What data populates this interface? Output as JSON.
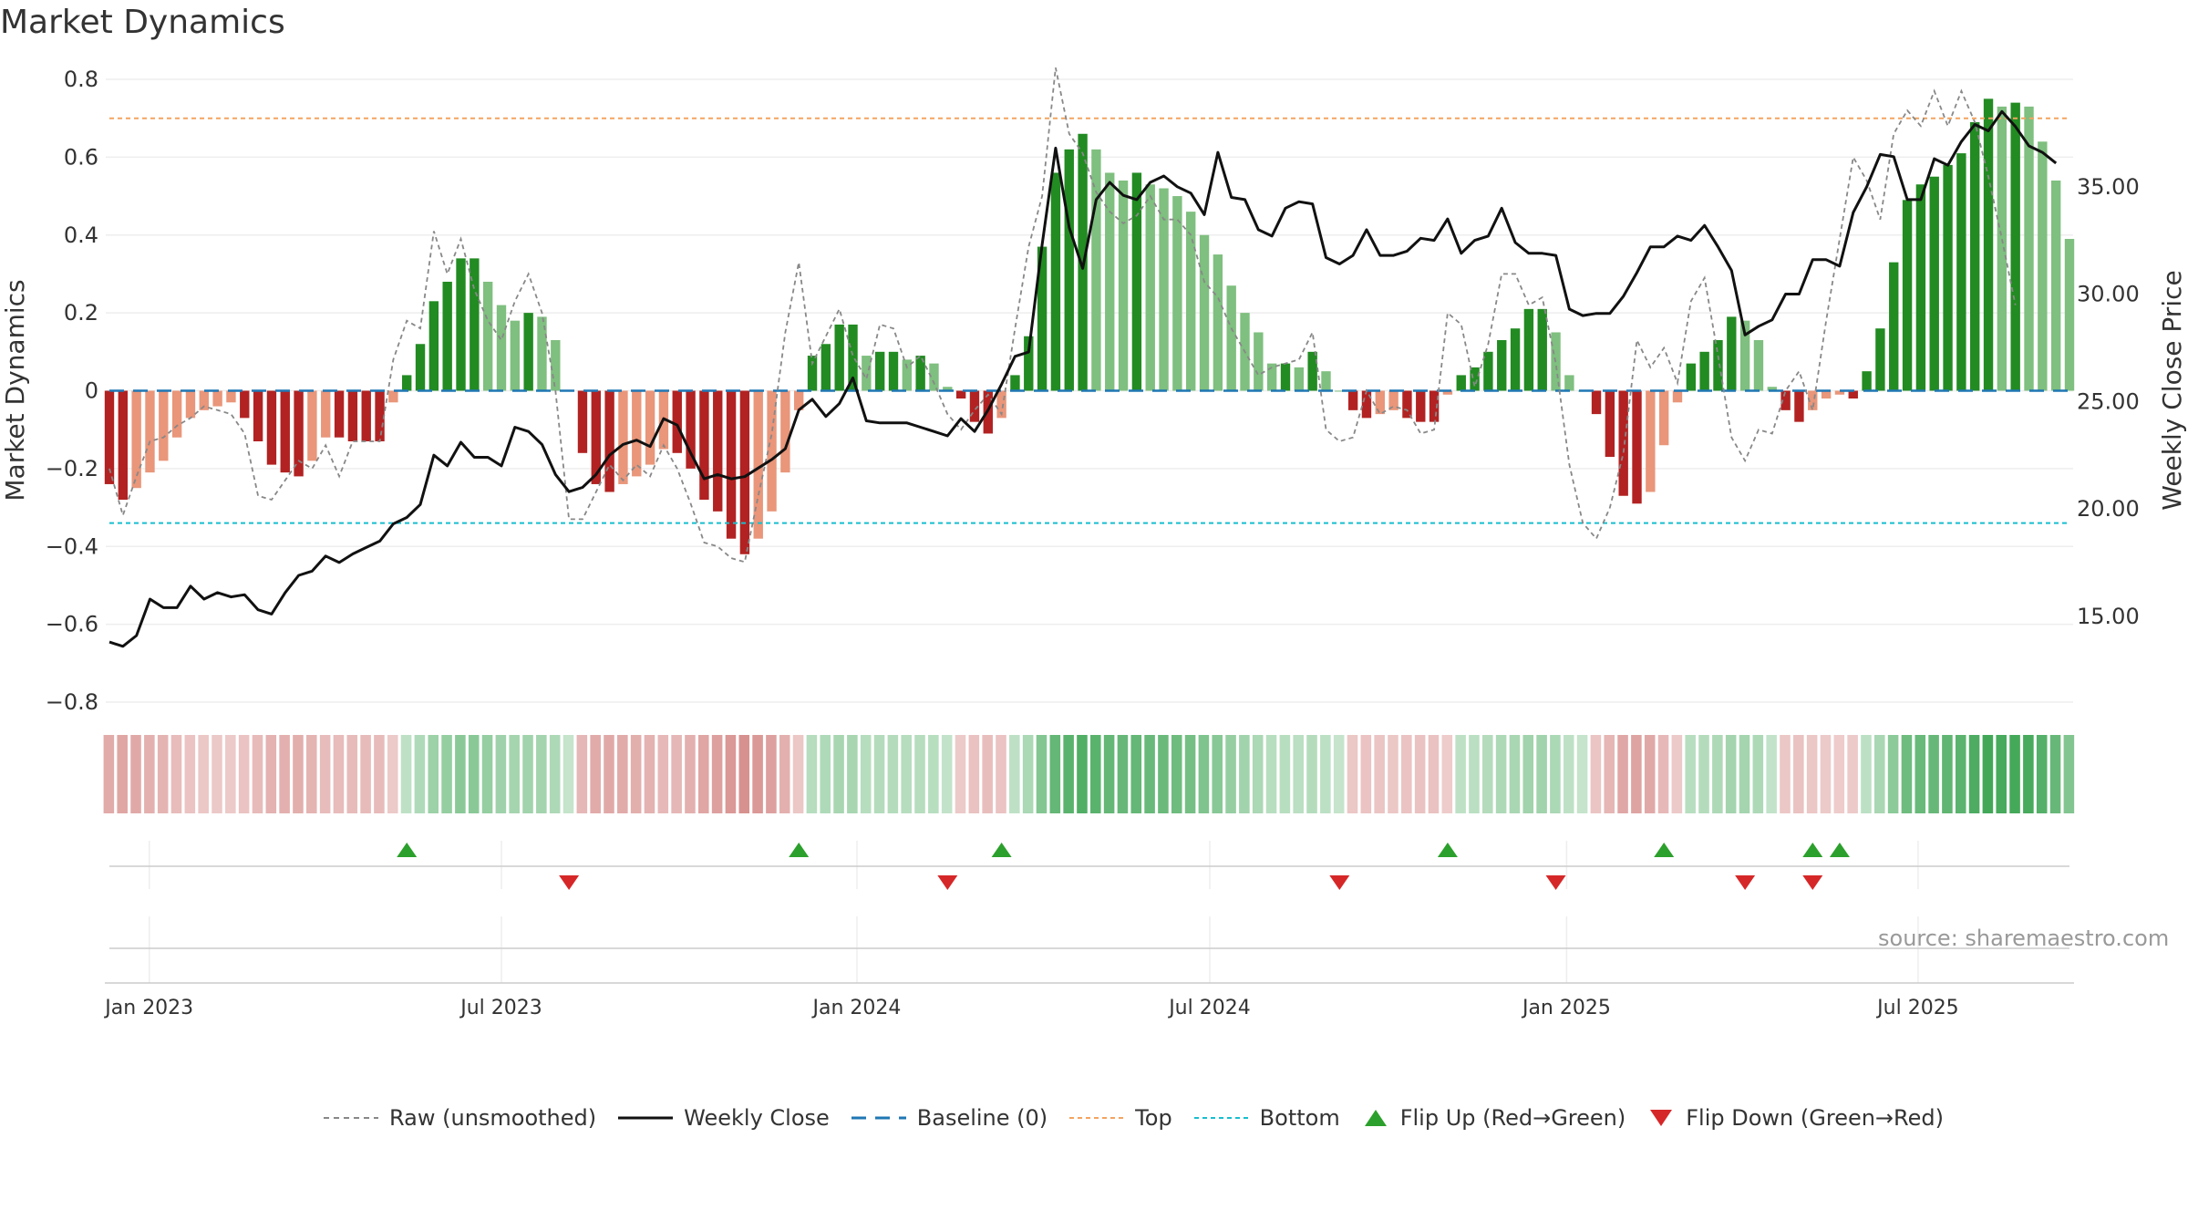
{
  "title": "Market Dynamics",
  "source": "source: sharemaestro.com",
  "chart_data": {
    "type": "bar",
    "xlabel": "",
    "ylabel_left": "Market Dynamics",
    "ylabel_right": "Weekly Close Price",
    "ylim_left": [
      -0.8,
      0.8
    ],
    "ylim_right": [
      11.0,
      40.0
    ],
    "yticks_left": [
      "0.8",
      "0.6",
      "0.4",
      "0.2",
      "0",
      "−0.2",
      "−0.4",
      "−0.6",
      "−0.8"
    ],
    "yticks_right": [
      "35.00",
      "30.00",
      "25.00",
      "20.00",
      "15.00"
    ],
    "xticks": [
      "Jan 2023",
      "Jul 2023",
      "Jan 2024",
      "Jul 2024",
      "Jan 2025",
      "Jul 2025"
    ],
    "thresholds": {
      "top": 0.7,
      "bottom": -0.34,
      "baseline": 0
    },
    "grid": true,
    "legend_position": "bottom",
    "colors": {
      "strong_up": "#228B22",
      "weak_up": "#7FBF7F",
      "strong_down": "#B22222",
      "weak_down": "#E9967A",
      "close": "#111111",
      "raw": "#888888",
      "baseline": "#1f77b4",
      "top": "#f4a460",
      "bottom": "#17becf",
      "flip_up": "#2ca02c",
      "flip_down": "#d62728"
    },
    "series": [
      {
        "name": "Market Dynamics (smoothed)",
        "values": [
          -0.24,
          -0.28,
          -0.25,
          -0.21,
          -0.18,
          -0.12,
          -0.07,
          -0.05,
          -0.04,
          -0.03,
          -0.07,
          -0.13,
          -0.19,
          -0.21,
          -0.22,
          -0.18,
          -0.12,
          -0.12,
          -0.13,
          -0.13,
          -0.13,
          -0.03,
          0.04,
          0.12,
          0.23,
          0.28,
          0.34,
          0.34,
          0.28,
          0.22,
          0.18,
          0.2,
          0.19,
          0.13,
          0.0,
          -0.16,
          -0.24,
          -0.26,
          -0.24,
          -0.22,
          -0.19,
          -0.15,
          -0.16,
          -0.2,
          -0.28,
          -0.31,
          -0.38,
          -0.42,
          -0.38,
          -0.31,
          -0.21,
          -0.05,
          0.09,
          0.12,
          0.17,
          0.17,
          0.09,
          0.1,
          0.1,
          0.08,
          0.09,
          0.07,
          0.01,
          -0.02,
          -0.08,
          -0.11,
          -0.07,
          0.04,
          0.14,
          0.37,
          0.56,
          0.62,
          0.66,
          0.62,
          0.56,
          0.54,
          0.56,
          0.53,
          0.52,
          0.5,
          0.46,
          0.4,
          0.35,
          0.27,
          0.2,
          0.15,
          0.07,
          0.07,
          0.06,
          0.1,
          0.05,
          0.0,
          -0.05,
          -0.07,
          -0.06,
          -0.05,
          -0.07,
          -0.08,
          -0.08,
          -0.01,
          0.04,
          0.06,
          0.1,
          0.13,
          0.16,
          0.21,
          0.21,
          0.15,
          0.04,
          0.0,
          -0.06,
          -0.17,
          -0.27,
          -0.29,
          -0.26,
          -0.14,
          -0.03,
          0.07,
          0.1,
          0.13,
          0.19,
          0.18,
          0.13,
          0.01,
          -0.05,
          -0.08,
          -0.05,
          -0.02,
          -0.01,
          -0.02,
          0.05,
          0.16,
          0.33,
          0.49,
          0.53,
          0.55,
          0.58,
          0.61,
          0.69,
          0.75,
          0.73,
          0.74,
          0.73,
          0.64,
          0.54,
          0.39
        ]
      },
      {
        "name": "Raw (unsmoothed)",
        "values": [
          -0.2,
          -0.32,
          -0.22,
          -0.13,
          -0.12,
          -0.09,
          -0.07,
          -0.04,
          -0.05,
          -0.06,
          -0.11,
          -0.27,
          -0.28,
          -0.23,
          -0.18,
          -0.2,
          -0.14,
          -0.22,
          -0.13,
          -0.13,
          -0.13,
          0.08,
          0.18,
          0.16,
          0.41,
          0.3,
          0.39,
          0.26,
          0.18,
          0.13,
          0.23,
          0.3,
          0.2,
          0.0,
          -0.33,
          -0.33,
          -0.26,
          -0.19,
          -0.23,
          -0.19,
          -0.22,
          -0.14,
          -0.2,
          -0.29,
          -0.39,
          -0.4,
          -0.43,
          -0.44,
          -0.27,
          -0.11,
          0.15,
          0.33,
          0.07,
          0.14,
          0.21,
          0.09,
          0.03,
          0.17,
          0.16,
          0.06,
          0.09,
          0.02,
          -0.06,
          -0.1,
          -0.05,
          -0.01,
          -0.06,
          0.16,
          0.37,
          0.5,
          0.83,
          0.66,
          0.61,
          0.51,
          0.46,
          0.43,
          0.45,
          0.5,
          0.44,
          0.44,
          0.4,
          0.28,
          0.24,
          0.16,
          0.1,
          0.04,
          0.06,
          0.07,
          0.08,
          0.15,
          -0.1,
          -0.13,
          -0.12,
          0.0,
          -0.06,
          -0.04,
          -0.05,
          -0.11,
          -0.1,
          0.2,
          0.17,
          0.01,
          0.12,
          0.3,
          0.3,
          0.22,
          0.24,
          0.07,
          -0.19,
          -0.34,
          -0.38,
          -0.3,
          -0.16,
          0.13,
          0.06,
          0.11,
          0.02,
          0.23,
          0.29,
          0.09,
          -0.12,
          -0.18,
          -0.1,
          -0.11,
          0.0,
          0.05,
          -0.05,
          0.18,
          0.39,
          0.6,
          0.54,
          0.44,
          0.66,
          0.72,
          0.68,
          0.77,
          0.68,
          0.77,
          0.69,
          0.55,
          0.39,
          0.22
        ]
      },
      {
        "name": "Weekly Close",
        "values": [
          13.8,
          13.6,
          14.1,
          15.8,
          15.4,
          15.4,
          16.4,
          15.8,
          16.1,
          15.9,
          16.0,
          15.3,
          15.1,
          16.1,
          16.9,
          17.1,
          17.8,
          17.5,
          17.9,
          18.2,
          18.5,
          19.3,
          19.6,
          20.2,
          22.5,
          22.0,
          23.1,
          22.4,
          22.4,
          22.0,
          23.8,
          23.6,
          23.0,
          21.6,
          20.8,
          21.0,
          21.6,
          22.5,
          23.0,
          23.2,
          22.9,
          24.2,
          23.9,
          22.6,
          21.4,
          21.6,
          21.4,
          21.5,
          21.9,
          22.3,
          22.8,
          24.6,
          25.1,
          24.3,
          24.9,
          26.1,
          24.1,
          24.0,
          24.0,
          24.0,
          23.8,
          23.6,
          23.4,
          24.2,
          23.6,
          24.6,
          25.8,
          27.1,
          27.3,
          32.3,
          36.8,
          33.1,
          31.2,
          34.4,
          35.2,
          34.6,
          34.4,
          35.2,
          35.5,
          35.0,
          34.7,
          33.7,
          36.6,
          34.5,
          34.4,
          33.0,
          32.7,
          34.0,
          34.3,
          34.2,
          31.7,
          31.4,
          31.8,
          33.0,
          31.8,
          31.8,
          32.0,
          32.6,
          32.5,
          33.5,
          31.9,
          32.5,
          32.7,
          34.0,
          32.4,
          31.9,
          31.9,
          31.8,
          29.3,
          29.0,
          29.1,
          29.1,
          29.9,
          31.0,
          32.2,
          32.2,
          32.7,
          32.5,
          33.2,
          32.2,
          31.1,
          28.1,
          28.5,
          28.8,
          30.0,
          30.0,
          31.6,
          31.6,
          31.3,
          33.8,
          35.0,
          36.5,
          36.4,
          34.4,
          34.4,
          36.3,
          36.0,
          37.1,
          37.9,
          37.6,
          38.5,
          37.8,
          36.9,
          36.6,
          36.1
        ]
      },
      {
        "name": "Baseline (0)",
        "values": [
          0
        ]
      },
      {
        "name": "Top",
        "values": [
          0.7
        ]
      },
      {
        "name": "Bottom",
        "values": [
          -0.34
        ]
      }
    ],
    "state_strip": {
      "name": "Regime strip",
      "note_series": "Market Dynamics (smoothed)"
    },
    "flip_up_positions": [
      22,
      51,
      66,
      99,
      115,
      126,
      128
    ],
    "flip_down_positions": [
      34,
      62,
      91,
      107,
      121,
      126
    ],
    "legend": [
      "Raw (unsmoothed)",
      "Weekly Close",
      "Baseline (0)",
      "Top",
      "Bottom",
      "Flip Up (Red→Green)",
      "Flip Down (Green→Red)"
    ]
  }
}
